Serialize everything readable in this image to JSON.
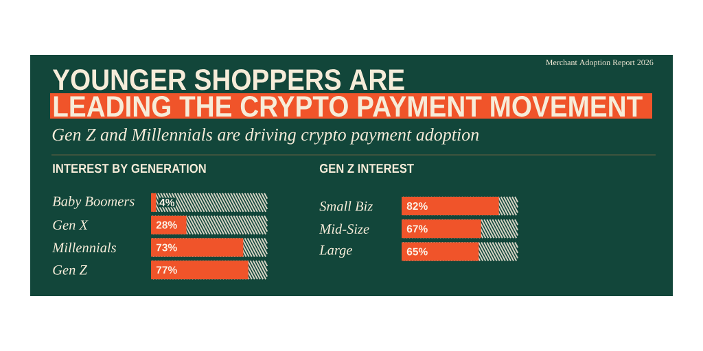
{
  "chart_data": [
    {
      "type": "other",
      "title": "YOUNGER SHOPPERS ARE LEADING THE CRYPTO PAYMENT MOVEMENT",
      "subtitle": "Gen Z and Millennials are driving crypto payment adoption",
      "annotations": [
        "Merchant Adoption Report 2026"
      ]
    },
    {
      "type": "bar",
      "orientation": "horizontal",
      "title": "INTEREST BY GENERATION",
      "categories": [
        "Baby Boomers",
        "Gen X",
        "Millennials",
        "Gen Z"
      ],
      "values": [
        4,
        28,
        73,
        77
      ],
      "value_labels": [
        "4%",
        "28%",
        "73%",
        "77%"
      ],
      "color": "#f0542a",
      "tick_labels": "y"
    },
    {
      "type": "bar",
      "orientation": "horizontal",
      "title": "GEN Z INTEREST",
      "categories": [
        "Small Biz",
        "Mid-Size",
        "Large"
      ],
      "values": [
        82,
        67,
        65
      ],
      "value_labels": [
        "82%",
        "67%",
        "65%"
      ],
      "color": "#f0542a",
      "tick_labels": "y"
    }
  ]
}
